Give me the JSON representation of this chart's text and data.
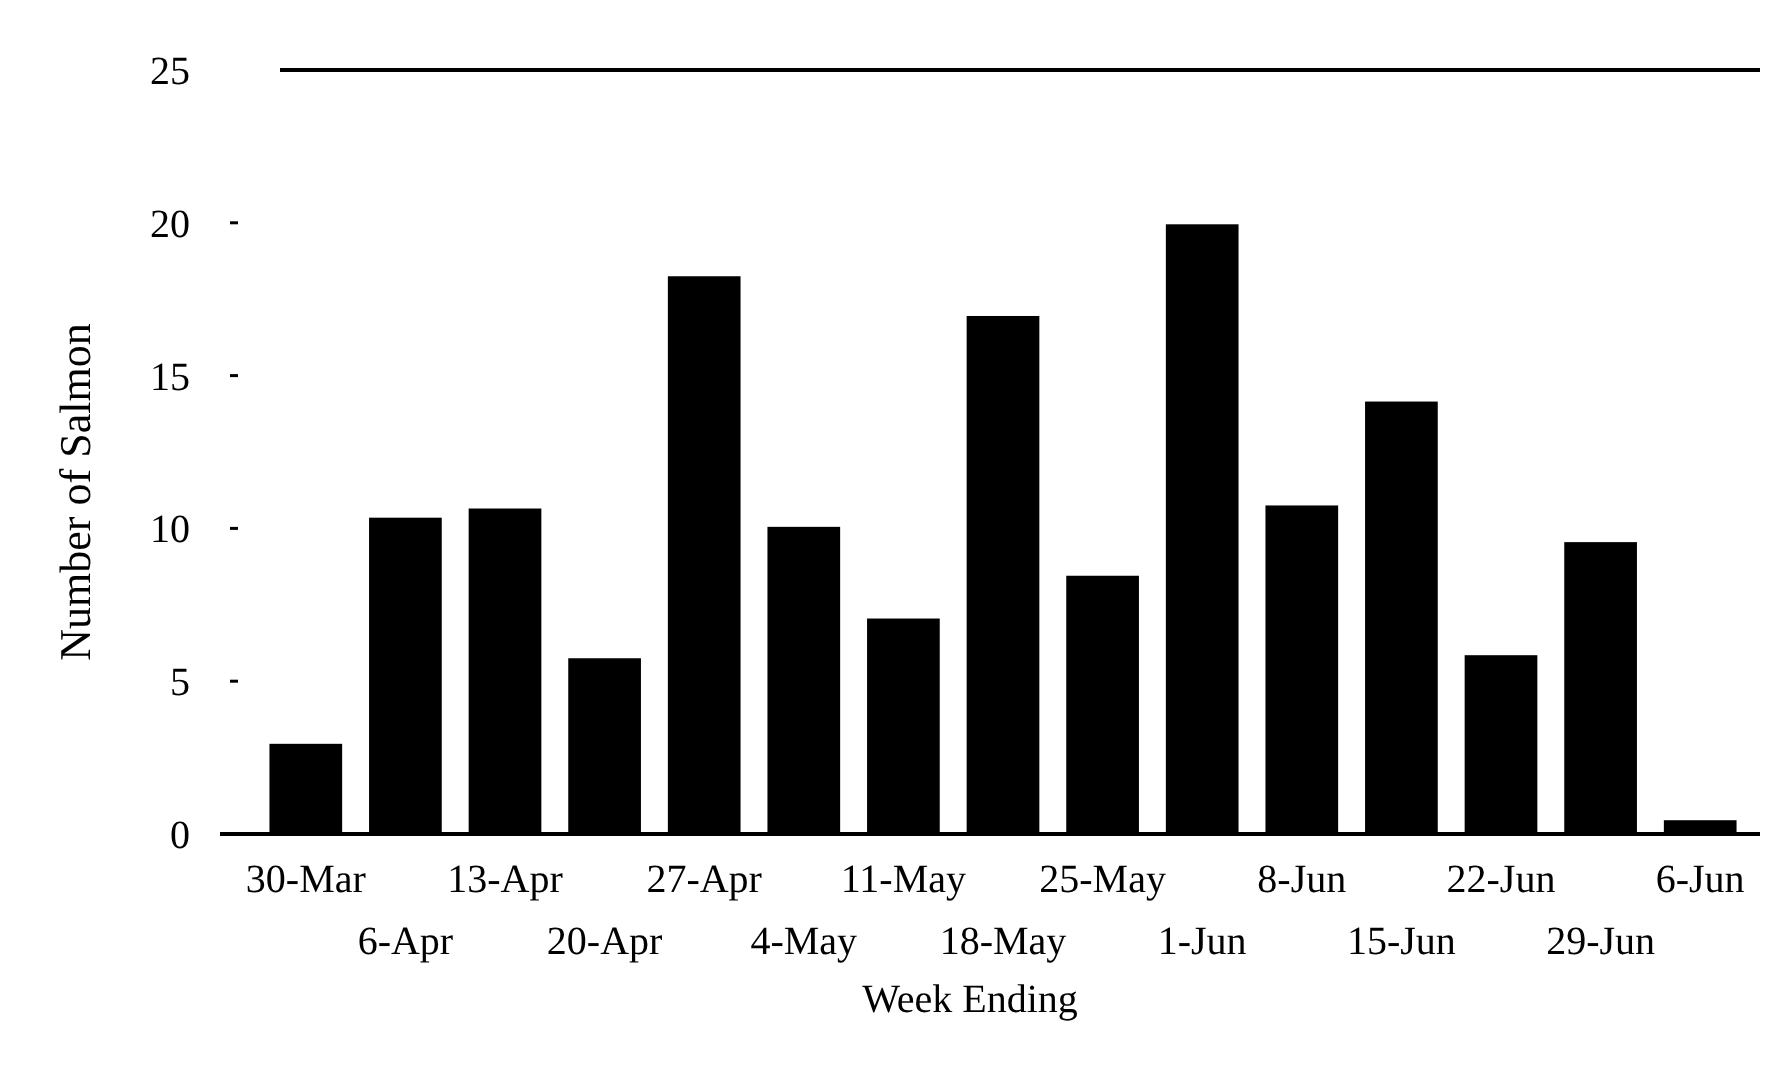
{
  "chart_data": {
    "type": "bar",
    "xlabel": "Week Ending",
    "ylabel": "Number of Salmon",
    "categories": [
      "30-Mar",
      "6-Apr",
      "13-Apr",
      "20-Apr",
      "27-Apr",
      "4-May",
      "11-May",
      "18-May",
      "25-May",
      "1-Jun",
      "8-Jun",
      "15-Jun",
      "22-Jun",
      "29-Jun",
      "6-Jun"
    ],
    "values": [
      3,
      10.4,
      10.7,
      5.8,
      18.3,
      10.1,
      7.1,
      17,
      8.5,
      20,
      10.8,
      14.2,
      5.9,
      9.6,
      0.5
    ],
    "color": "#000000",
    "ylim": [
      0,
      25
    ],
    "yticks": [
      0,
      5,
      10,
      15,
      20,
      25
    ],
    "grid": false
  }
}
